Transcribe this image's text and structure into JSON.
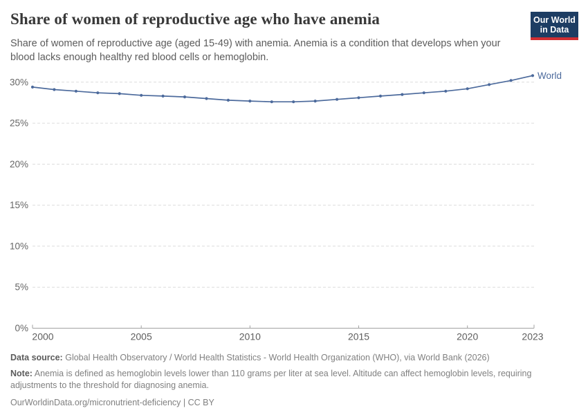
{
  "header": {
    "title": "Share of women of reproductive age who have anemia",
    "subtitle": "Share of women of reproductive age (aged 15-49) with anemia. Anemia is a condition that develops when your blood lacks enough healthy red blood cells or hemoglobin.",
    "logo": {
      "line1": "Our World",
      "line2": "in Data",
      "bg_color": "#1d3d63",
      "accent_color": "#d02e32"
    }
  },
  "chart_data": {
    "type": "line",
    "title": "Share of women of reproductive age who have anemia",
    "xlabel": "",
    "ylabel": "",
    "x": [
      2000,
      2001,
      2002,
      2003,
      2004,
      2005,
      2006,
      2007,
      2008,
      2009,
      2010,
      2011,
      2012,
      2013,
      2014,
      2015,
      2016,
      2017,
      2018,
      2019,
      2020,
      2021,
      2022,
      2023
    ],
    "series": [
      {
        "name": "World",
        "color": "#4c6a9c",
        "values": [
          29.4,
          29.1,
          28.9,
          28.7,
          28.6,
          28.4,
          28.3,
          28.2,
          28.0,
          27.8,
          27.7,
          27.6,
          27.6,
          27.7,
          27.9,
          28.1,
          28.3,
          28.5,
          28.7,
          28.9,
          29.2,
          29.7,
          30.2,
          30.8
        ]
      }
    ],
    "x_ticks": [
      2000,
      2005,
      2010,
      2015,
      2020,
      2023
    ],
    "y_ticks": [
      0,
      5,
      10,
      15,
      20,
      25,
      30
    ],
    "y_tick_suffix": "%",
    "xlim": [
      2000,
      2023
    ],
    "ylim": [
      0,
      31.6
    ],
    "grid": "horizontal-dashed",
    "legend": "end-of-line-label",
    "grid_color": "#dcdcdc",
    "axis_color": "#a1a1a1",
    "y_tick_label_color": "#666666",
    "x_tick_label_color": "#5e5e5e"
  },
  "footer": {
    "source_label": "Data source:",
    "source_text": "Global Health Observatory / World Health Statistics - World Health Organization (WHO), via World Bank (2026)",
    "note_label": "Note:",
    "note_text": "Anemia is defined as hemoglobin levels lower than 110 grams per liter at sea level. Altitude can affect hemoglobin levels, requiring adjustments to the threshold for diagnosing anemia.",
    "citation": "OurWorldinData.org/micronutrient-deficiency | CC BY"
  }
}
